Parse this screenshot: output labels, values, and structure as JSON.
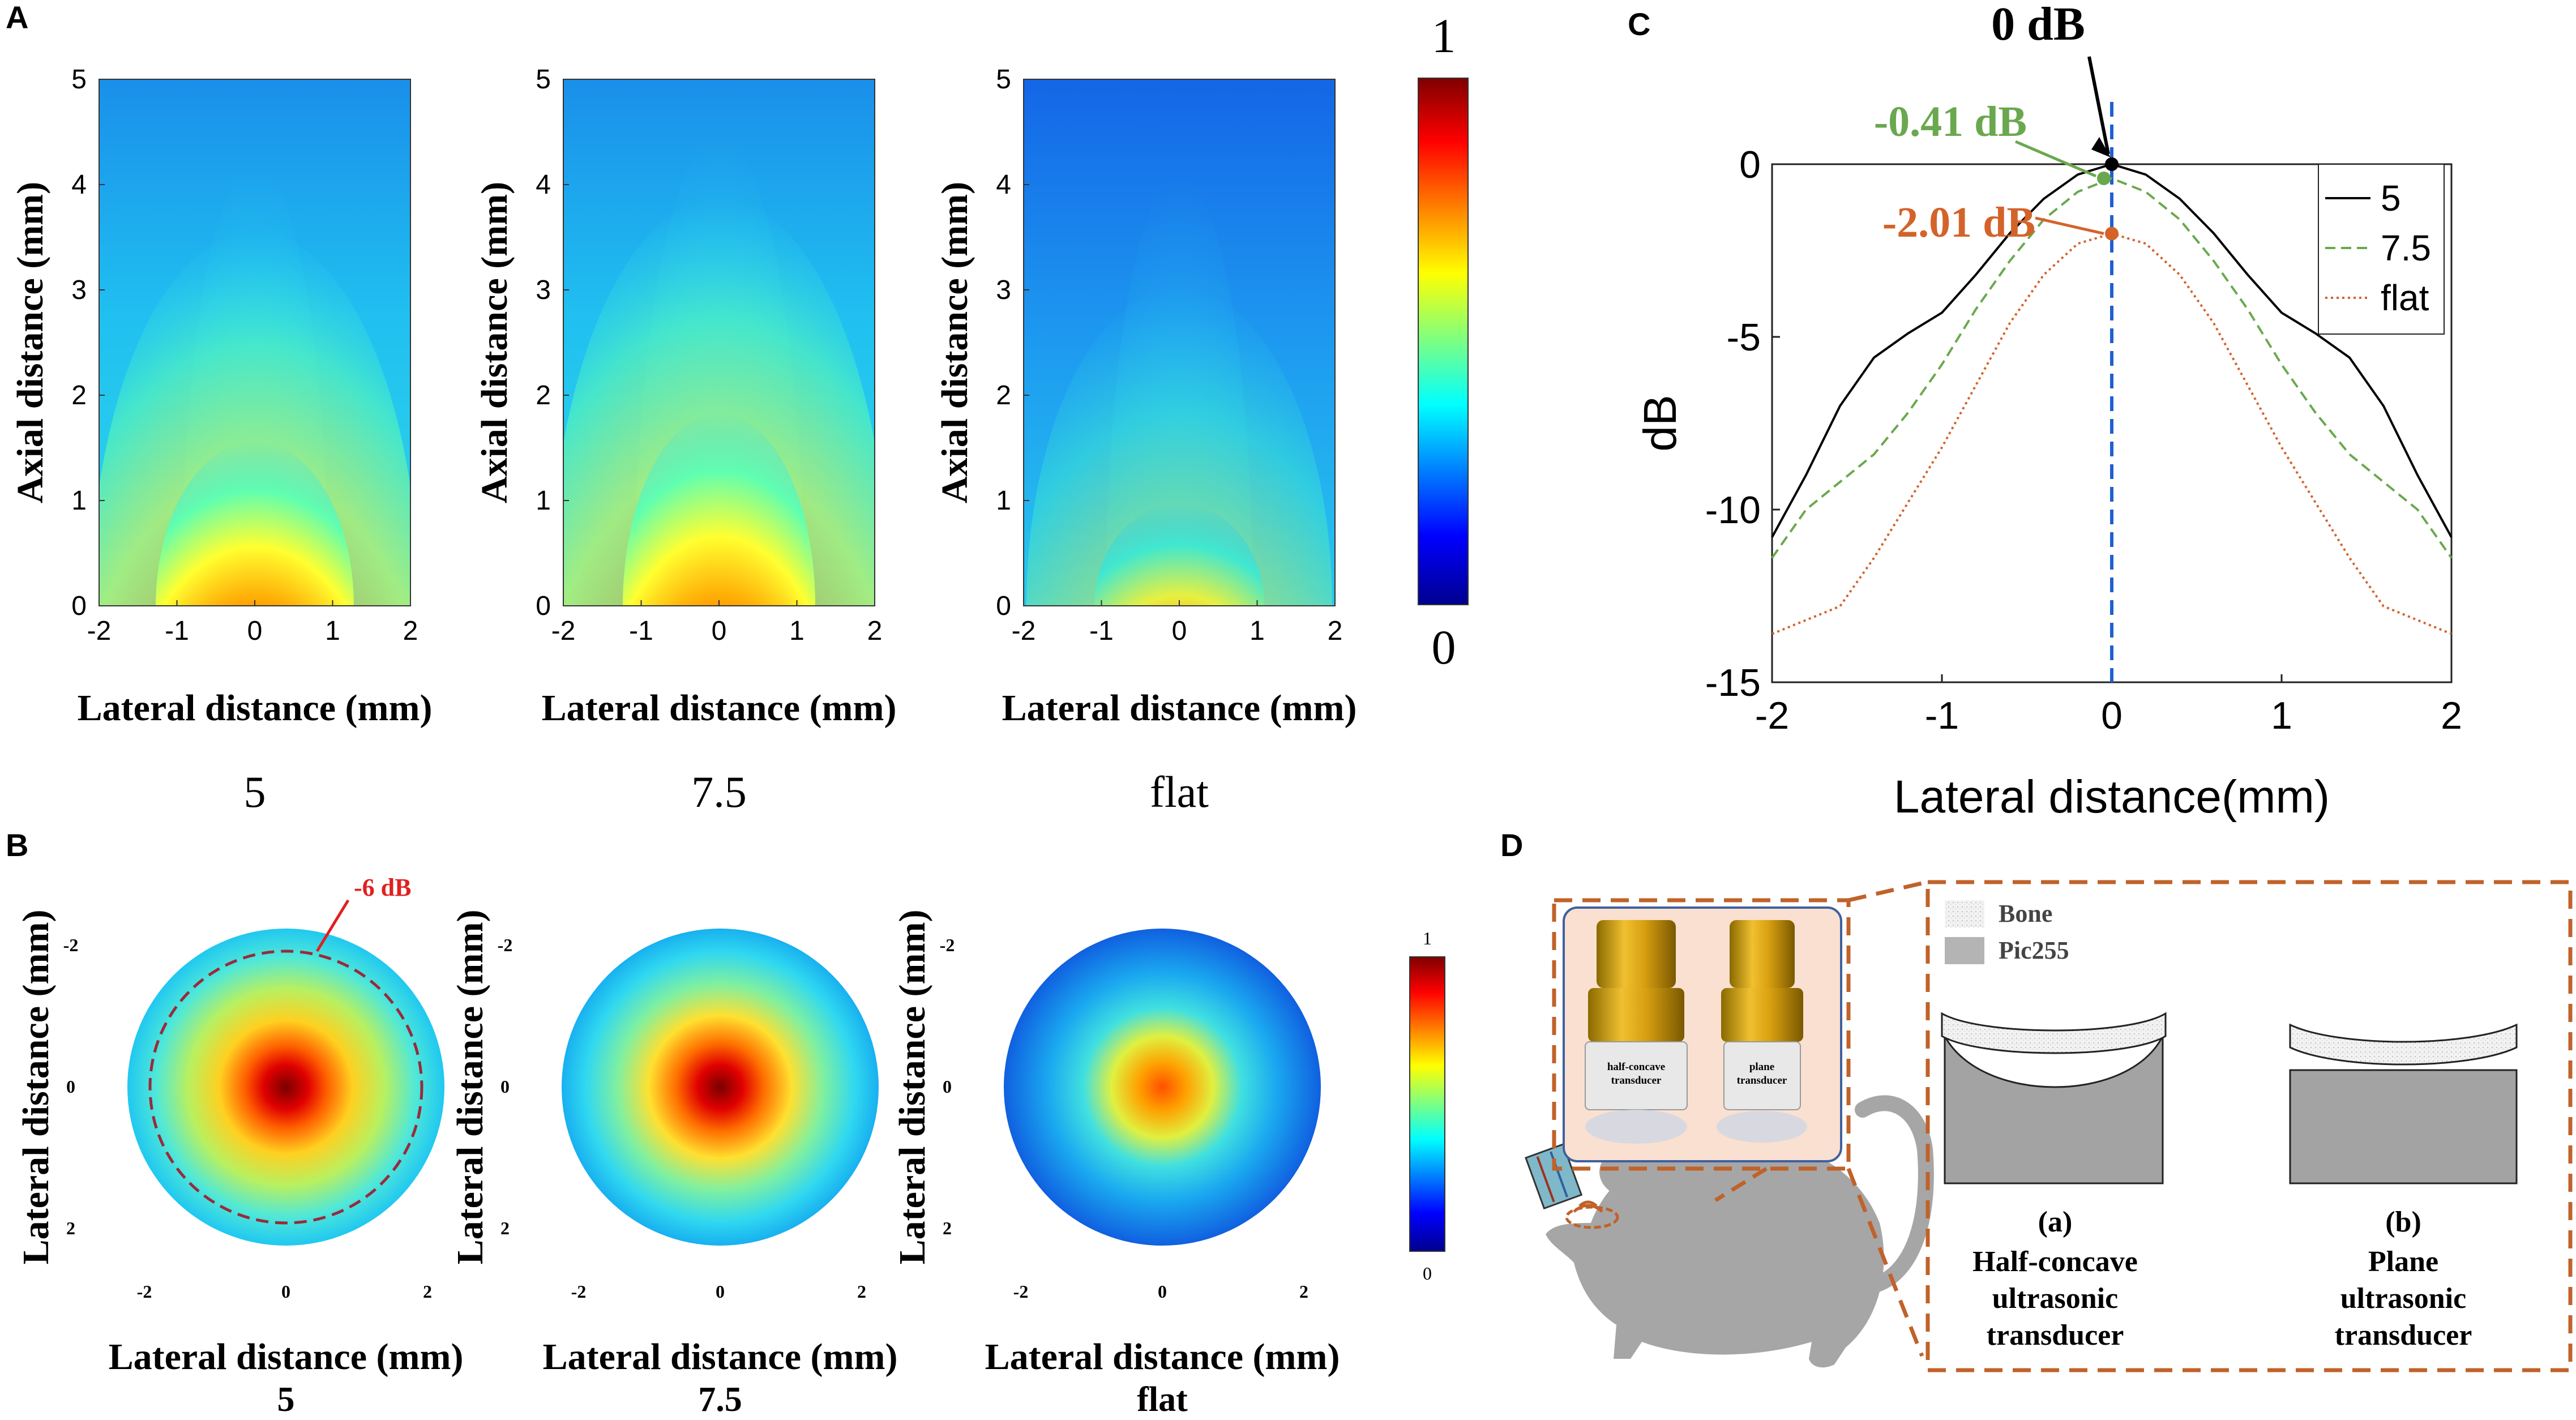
{
  "panel_labels": {
    "a": "A",
    "b": "B",
    "c": "C",
    "d": "D"
  },
  "colors": {
    "jet_dark_red": "#7f0000",
    "jet_red": "#ff2000",
    "jet_yellow": "#ffff00",
    "jet_cyan": "#00ffff",
    "jet_blue": "#0000ff",
    "jet_dark_blue": "#00008f",
    "curve_5": "#000000",
    "curve_7_5": "#6aa84f",
    "curve_flat": "#d4632a",
    "center_line": "#1f5fd0",
    "red_annotation": "#e02020",
    "transducer_gold": "#d4a017",
    "brown_dash": "#c0622a",
    "rat_gray": "#a6a6a6"
  },
  "panel_a": {
    "axial_label": "Axial distance (mm)",
    "lateral_label": "Lateral distance (mm)",
    "x_ticks": [
      "-2",
      "-1",
      "0",
      "1",
      "2"
    ],
    "y_ticks": [
      "0",
      "1",
      "2",
      "3",
      "4",
      "5"
    ],
    "captions": [
      "5",
      "7.5",
      "flat"
    ],
    "colorbar": {
      "max": "1",
      "min": "0"
    }
  },
  "panel_b": {
    "axis_label": "Lateral distance (mm)",
    "x_ticks": [
      "-2",
      "0",
      "2"
    ],
    "y_ticks": [
      "-2",
      "0",
      "2"
    ],
    "captions": [
      "5",
      "7.5",
      "flat"
    ],
    "annotation": "-6 dB",
    "colorbar": {
      "max": "1",
      "min": "0"
    }
  },
  "chart_data": {
    "type": "line",
    "title": "",
    "xlabel": "Lateral distance(mm)",
    "ylabel": "dB",
    "xlim": [
      -2,
      2
    ],
    "ylim": [
      -15,
      0
    ],
    "x_ticks": [
      "-2",
      "-1",
      "0",
      "1",
      "2"
    ],
    "y_ticks": [
      "0",
      "-5",
      "-10",
      "-15"
    ],
    "legend": [
      "5",
      "7.5",
      "flat"
    ],
    "legend_position": "top-right",
    "series": [
      {
        "name": "5",
        "x": [
          -2,
          -1.8,
          -1.6,
          -1.4,
          -1.2,
          -1.0,
          -0.8,
          -0.6,
          -0.4,
          -0.2,
          0,
          0.2,
          0.4,
          0.6,
          0.8,
          1.0,
          1.2,
          1.4,
          1.6,
          1.8,
          2
        ],
        "y": [
          -10.8,
          -9.0,
          -7.0,
          -5.6,
          -4.9,
          -4.3,
          -3.2,
          -2.0,
          -1.0,
          -0.3,
          0,
          -0.3,
          -1.0,
          -2.0,
          -3.2,
          -4.3,
          -4.9,
          -5.6,
          -7.0,
          -9.0,
          -10.8
        ]
      },
      {
        "name": "7.5",
        "x": [
          -2,
          -1.8,
          -1.6,
          -1.4,
          -1.2,
          -1.0,
          -0.8,
          -0.6,
          -0.4,
          -0.2,
          0,
          0.2,
          0.4,
          0.6,
          0.8,
          1.0,
          1.2,
          1.4,
          1.6,
          1.8,
          2
        ],
        "y": [
          -11.4,
          -10.0,
          -9.2,
          -8.4,
          -7.2,
          -5.8,
          -4.2,
          -2.8,
          -1.6,
          -0.8,
          -0.41,
          -0.8,
          -1.6,
          -2.8,
          -4.2,
          -5.8,
          -7.2,
          -8.4,
          -9.2,
          -10.0,
          -11.4
        ]
      },
      {
        "name": "flat",
        "x": [
          -2,
          -1.8,
          -1.6,
          -1.4,
          -1.2,
          -1.0,
          -0.8,
          -0.6,
          -0.4,
          -0.2,
          0,
          0.2,
          0.4,
          0.6,
          0.8,
          1.0,
          1.2,
          1.4,
          1.6,
          1.8,
          2
        ],
        "y": [
          -13.6,
          -13.2,
          -12.8,
          -11.4,
          -9.8,
          -8.2,
          -6.4,
          -4.6,
          -3.2,
          -2.3,
          -2.01,
          -2.3,
          -3.2,
          -4.6,
          -6.4,
          -8.2,
          -9.8,
          -11.4,
          -12.8,
          -13.2,
          -13.6
        ]
      }
    ],
    "annotations": [
      {
        "text": "0 dB",
        "x": 0,
        "y": 0
      },
      {
        "text": "-0.41 dB",
        "x": 0,
        "y": -0.41
      },
      {
        "text": "-2.01 dB",
        "x": 0,
        "y": -2.01
      }
    ],
    "center_line_x": 0
  },
  "panel_d": {
    "legend_bone": "Bone",
    "legend_pic": "Pic255",
    "transducer_labels": {
      "half_line1": "half-concave",
      "half_line2": "transducer",
      "plane_line1": "plane",
      "plane_line2": "transducer"
    },
    "a_label": "(a)",
    "a_text": [
      "Half-concave",
      "ultrasonic",
      "transducer"
    ],
    "b_label": "(b)",
    "b_text": [
      "Plane",
      "ultrasonic",
      "transducer"
    ]
  }
}
